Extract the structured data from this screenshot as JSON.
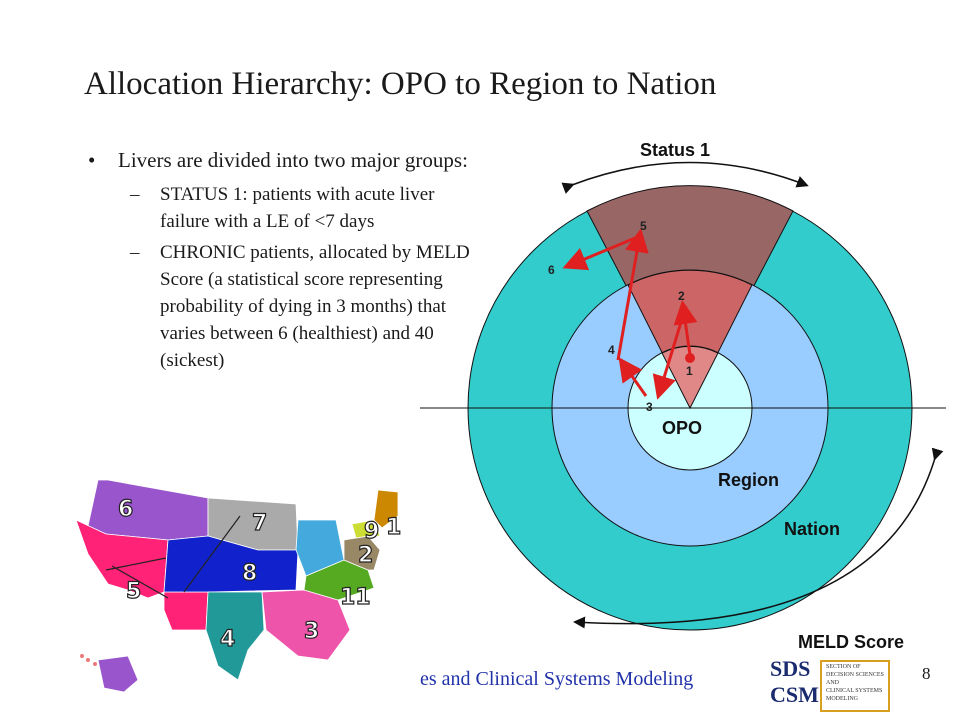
{
  "slide": {
    "title": "Allocation Hierarchy: OPO to Region to Nation",
    "page_number": "8",
    "footer_text": "es and Clinical Systems Modeling"
  },
  "bullets": {
    "main_bullet": "•",
    "main": "Livers are divided into two major groups:",
    "sub_dash": "–",
    "sub": [
      "STATUS 1: patients with acute liver failure with a LE of <7 days",
      "CHRONIC patients, allocated by MELD Score (a statistical score representing probability of dying in 3 months) that varies between 6 (healthiest) and 40 (sickest)"
    ]
  },
  "diagram": {
    "status_label": "Status 1",
    "meld_label": "MELD Score",
    "opo_label": "OPO",
    "region_label": "Region",
    "nation_label": "Nation",
    "step_labels": [
      "1",
      "2",
      "3",
      "4",
      "5",
      "6"
    ],
    "colors": {
      "nation": "#33cccc",
      "region": "#99ccff",
      "opo": "#ccffff",
      "sector_outer": "#996666",
      "sector_mid": "#cc6666",
      "sector_inner": "#e08888",
      "arrow": "#e02020"
    }
  },
  "map": {
    "region_labels": [
      "6",
      "7",
      "9",
      "1",
      "2",
      "8",
      "5",
      "11",
      "4",
      "3"
    ],
    "colors": {
      "r1": "#cc8800",
      "r2": "#998866",
      "r3": "#ee55aa",
      "r4": "#229999",
      "r5": "#ff2277",
      "r6": "#9955cc",
      "r7": "#aaaaaa",
      "r8": "#1122cc",
      "r9": "#ccdd33",
      "r10": "#44aadd",
      "r11": "#55aa22"
    }
  },
  "logo": {
    "sds": "SDS",
    "csm": "CSM",
    "lines": [
      "SECTION OF",
      "DECISION SCIENCES",
      "AND",
      "CLINICAL SYSTEMS",
      "MODELING"
    ]
  }
}
